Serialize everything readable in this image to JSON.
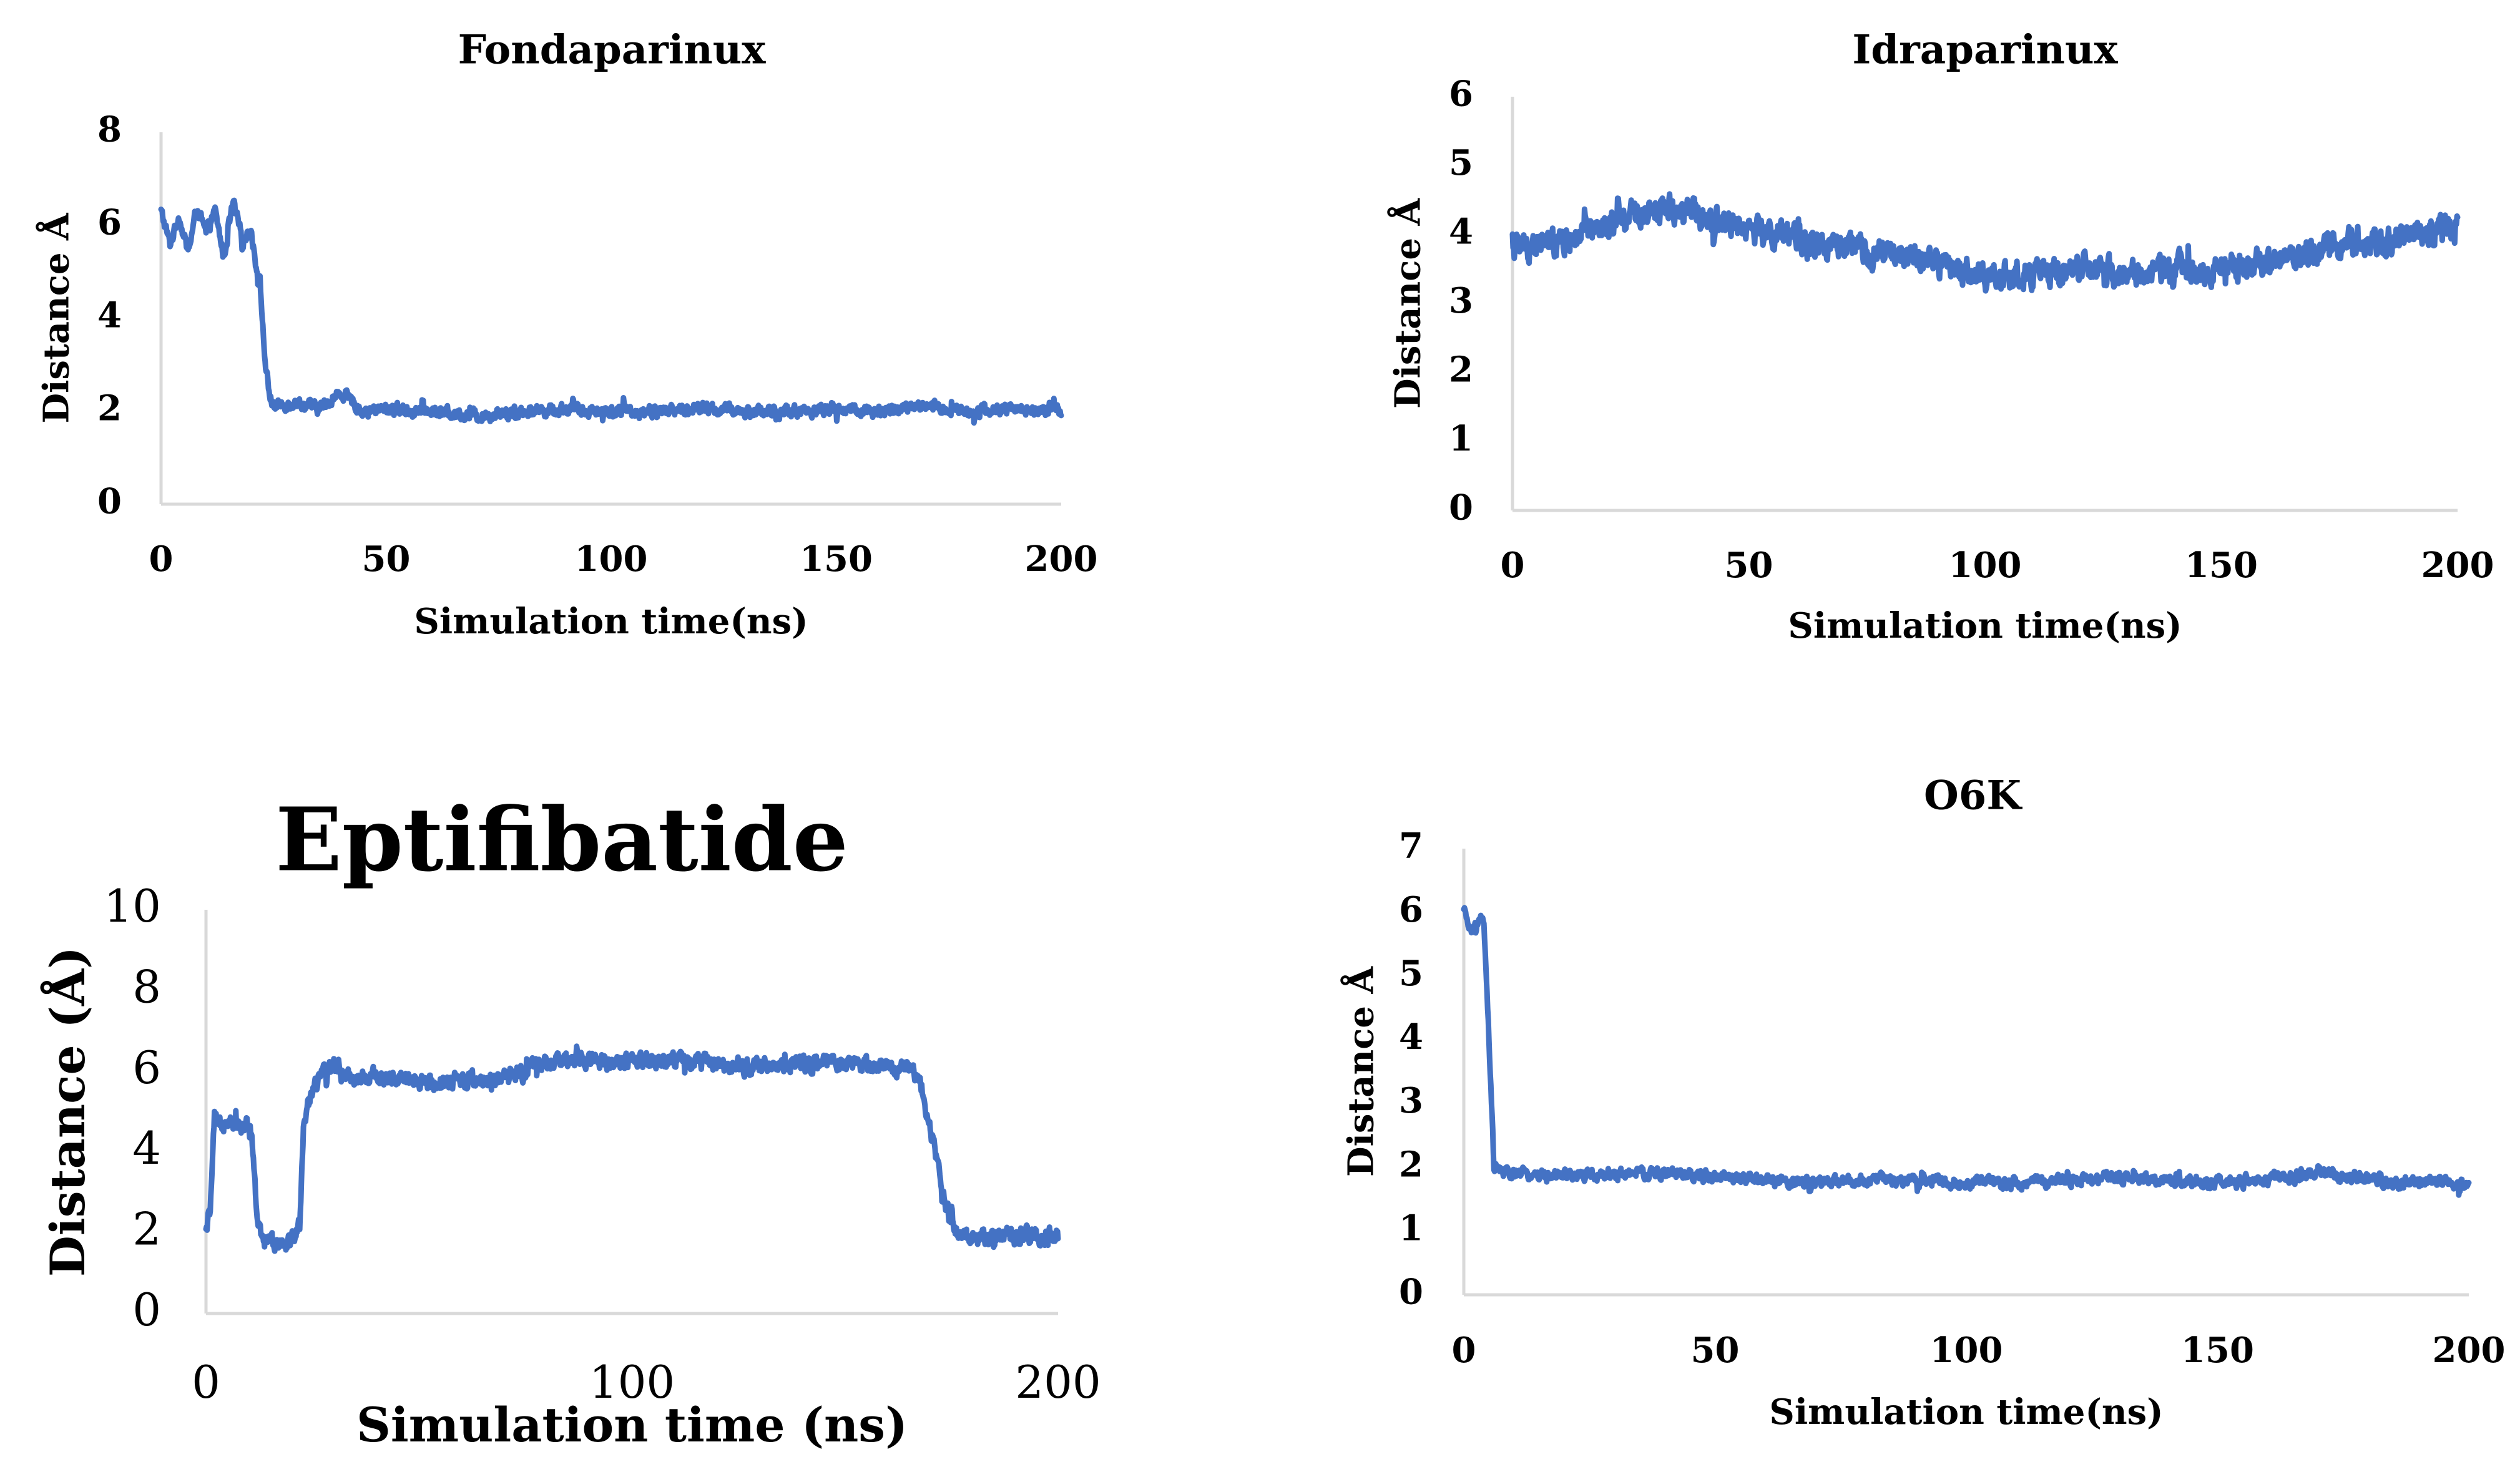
{
  "accent_color": "#4472c4",
  "chart_data": [
    {
      "type": "line",
      "title": "Fondaparinux",
      "xlabel": "Simulation time(ns)",
      "ylabel": "Distance Å",
      "xlim": [
        0,
        200
      ],
      "ylim": [
        0,
        8
      ],
      "xticks": [
        "0",
        "50",
        "100",
        "150",
        "200"
      ],
      "yticks": [
        "0",
        "2",
        "4",
        "6",
        "8"
      ],
      "grid": false,
      "series": [
        {
          "name": "Distance",
          "x": [
            0,
            2,
            4,
            6,
            8,
            10,
            12,
            14,
            16,
            18,
            20,
            21,
            22,
            23,
            24,
            25,
            30,
            35,
            40,
            45,
            50,
            60,
            70,
            80,
            90,
            100,
            110,
            120,
            130,
            140,
            150,
            160,
            170,
            180,
            190,
            200
          ],
          "values": [
            6.3,
            5.6,
            6.2,
            5.4,
            6.4,
            5.8,
            6.3,
            5.3,
            6.5,
            5.7,
            5.9,
            5.2,
            4.8,
            3.2,
            2.4,
            2.1,
            2.2,
            2.05,
            2.4,
            2.0,
            2.05,
            2.0,
            1.9,
            2.0,
            2.05,
            2.0,
            2.0,
            2.05,
            2.0,
            2.0,
            2.05,
            2.0,
            2.1,
            2.0,
            2.05,
            2.0
          ],
          "noise": 0.22
        }
      ]
    },
    {
      "type": "line",
      "title": "Idraparinux",
      "xlabel": "Simulation time(ns)",
      "ylabel": "Distance Å",
      "xlim": [
        0,
        200
      ],
      "ylim": [
        0,
        6
      ],
      "xticks": [
        "0",
        "50",
        "100",
        "150",
        "200"
      ],
      "yticks": [
        "0",
        "1",
        "2",
        "3",
        "4",
        "5",
        "6"
      ],
      "grid": false,
      "series": [
        {
          "name": "Distance",
          "x": [
            0,
            10,
            20,
            30,
            40,
            50,
            60,
            70,
            80,
            90,
            100,
            110,
            120,
            130,
            140,
            150,
            160,
            170,
            180,
            190,
            200
          ],
          "values": [
            3.8,
            3.9,
            4.1,
            4.4,
            4.3,
            4.1,
            3.9,
            3.8,
            3.7,
            3.6,
            3.4,
            3.4,
            3.5,
            3.4,
            3.5,
            3.5,
            3.6,
            3.8,
            3.9,
            4.0,
            4.1
          ],
          "noise": 0.35
        }
      ]
    },
    {
      "type": "line",
      "title": "Eptifibatide",
      "xlabel": "Simulation time (ns)",
      "ylabel": "Distance (Å)",
      "xlim": [
        0,
        200
      ],
      "ylim": [
        0,
        10
      ],
      "xticks": [
        "0",
        "100",
        "200"
      ],
      "yticks": [
        "0",
        "2",
        "4",
        "6",
        "8",
        "10"
      ],
      "grid": false,
      "series": [
        {
          "name": "Distance",
          "x": [
            0,
            1,
            2,
            3,
            5,
            8,
            10,
            11,
            12,
            13,
            15,
            20,
            22,
            23,
            25,
            30,
            35,
            40,
            50,
            60,
            70,
            80,
            90,
            100,
            110,
            120,
            130,
            140,
            150,
            160,
            165,
            168,
            170,
            172,
            174,
            176,
            180,
            190,
            200
          ],
          "values": [
            2.0,
            2.6,
            4.8,
            4.6,
            4.9,
            4.6,
            4.7,
            4.0,
            2.4,
            1.8,
            1.8,
            1.8,
            2.2,
            4.8,
            5.6,
            6.2,
            5.8,
            5.9,
            5.7,
            5.8,
            5.8,
            6.2,
            6.3,
            6.2,
            6.3,
            6.2,
            6.1,
            6.2,
            6.2,
            6.1,
            6.1,
            5.6,
            4.6,
            3.6,
            2.6,
            2.0,
            1.9,
            1.9,
            1.9
          ],
          "noise": 0.35
        }
      ]
    },
    {
      "type": "line",
      "title": "O6K",
      "xlabel": "Simulation time(ns)",
      "ylabel": "Distance Å",
      "xlim": [
        0,
        200
      ],
      "ylim": [
        0,
        7
      ],
      "xticks": [
        "0",
        "50",
        "100",
        "150",
        "200"
      ],
      "yticks": [
        "0",
        "1",
        "2",
        "3",
        "4",
        "5",
        "6",
        "7"
      ],
      "grid": false,
      "series": [
        {
          "name": "Distance",
          "x": [
            0,
            1,
            2,
            3,
            4,
            5,
            6,
            8,
            10,
            20,
            30,
            40,
            50,
            60,
            70,
            80,
            90,
            100,
            110,
            120,
            130,
            140,
            150,
            160,
            170,
            180,
            190,
            200
          ],
          "values": [
            6.0,
            5.8,
            5.7,
            5.9,
            5.8,
            4.0,
            2.0,
            1.9,
            1.9,
            1.85,
            1.9,
            1.9,
            1.85,
            1.8,
            1.75,
            1.8,
            1.8,
            1.75,
            1.75,
            1.8,
            1.85,
            1.8,
            1.75,
            1.8,
            1.9,
            1.8,
            1.75,
            1.75
          ],
          "noise": 0.16
        }
      ]
    }
  ]
}
